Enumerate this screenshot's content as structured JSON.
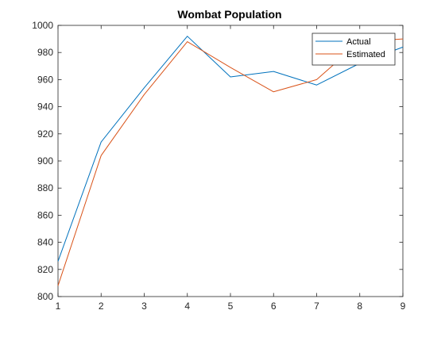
{
  "chart_data": {
    "type": "line",
    "title": "Wombat Population",
    "xlabel": "",
    "ylabel": "",
    "x": [
      1,
      2,
      3,
      4,
      5,
      6,
      7,
      8,
      9
    ],
    "xlim": [
      1,
      9
    ],
    "ylim": [
      800,
      1000
    ],
    "xticks": [
      1,
      2,
      3,
      4,
      5,
      6,
      7,
      8,
      9
    ],
    "yticks": [
      800,
      820,
      840,
      860,
      880,
      900,
      920,
      940,
      960,
      980,
      1000
    ],
    "grid": false,
    "legend": {
      "position": "top-right"
    },
    "series": [
      {
        "name": "Actual",
        "color": "#0072BD",
        "values": [
          826,
          914,
          954,
          992,
          962,
          966,
          956,
          972,
          984
        ]
      },
      {
        "name": "Estimated",
        "color": "#D95319",
        "values": [
          808,
          904,
          949,
          988,
          969,
          951,
          960,
          988,
          990
        ]
      }
    ]
  }
}
